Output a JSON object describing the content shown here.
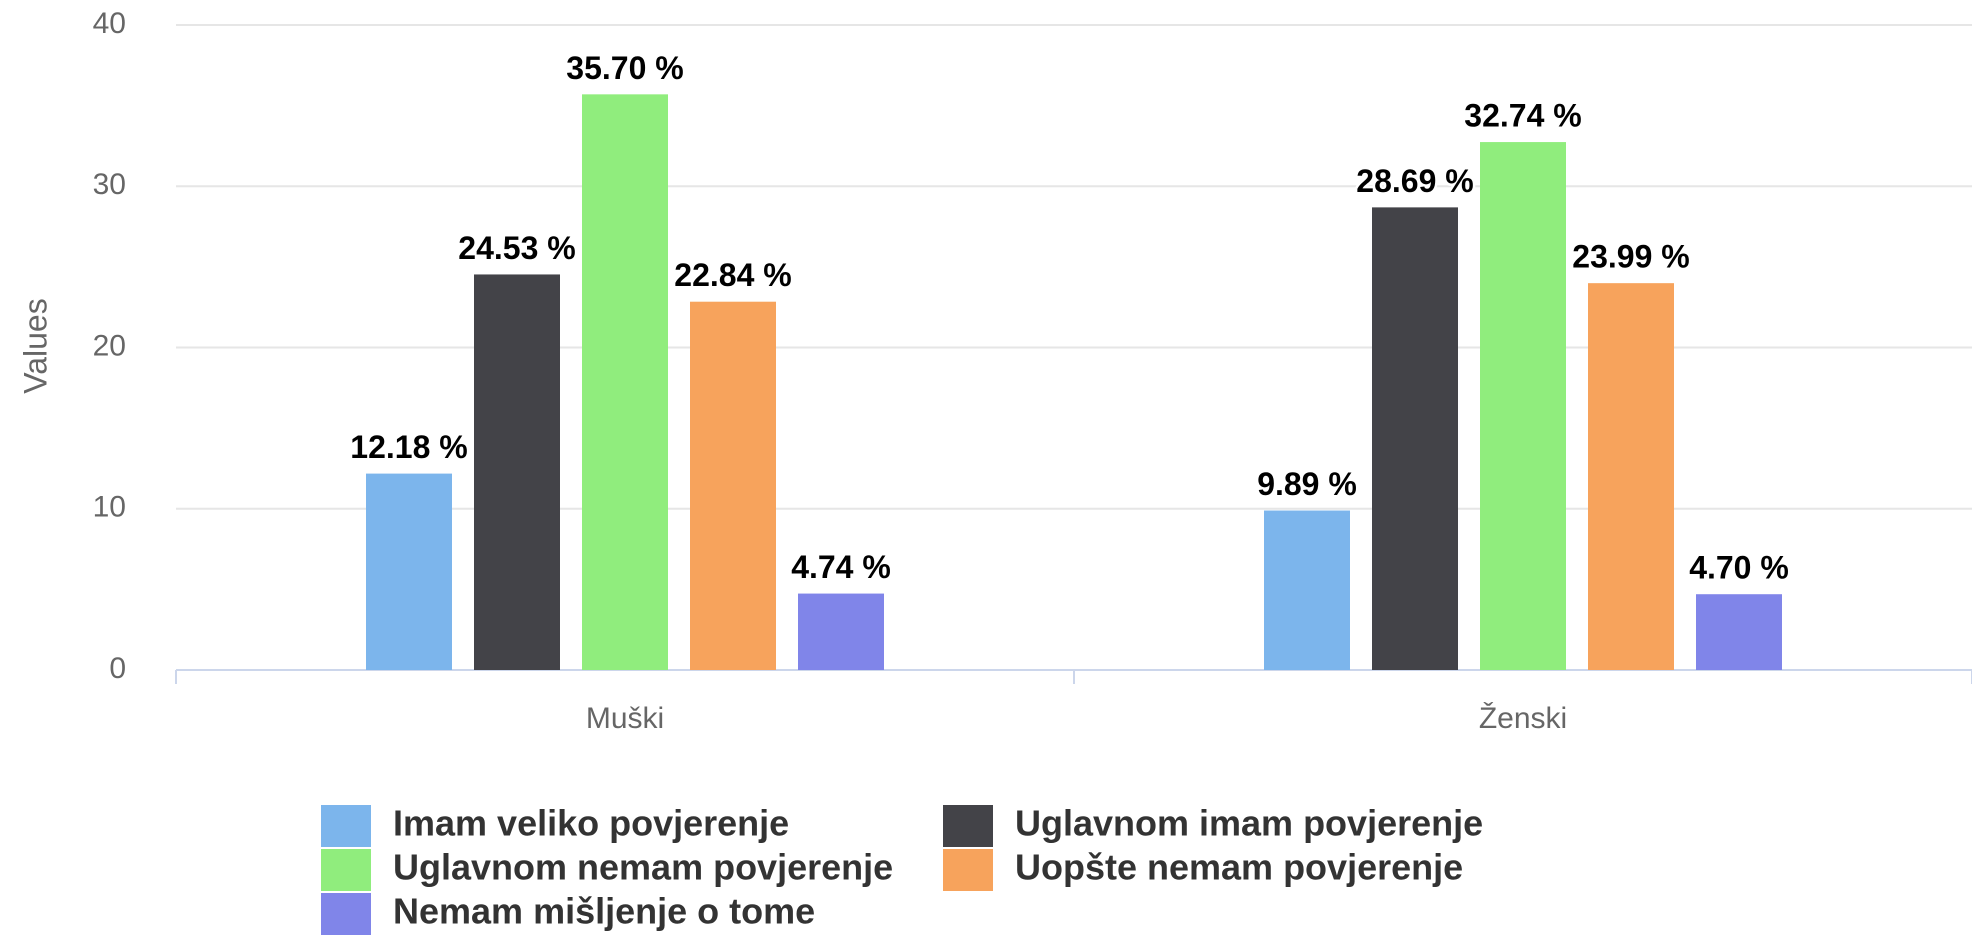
{
  "chart_data": {
    "type": "bar",
    "y_label": "Values",
    "categories": [
      "Muški",
      "Ženski"
    ],
    "series": [
      {
        "name": "Imam veliko povjerenje",
        "color": "#7cb5ec",
        "values": [
          12.18,
          9.89
        ],
        "value_labels": [
          "12.18 %",
          "9.89 %"
        ]
      },
      {
        "name": "Uglavnom imam povjerenje",
        "color": "#434348",
        "values": [
          24.53,
          28.69
        ],
        "value_labels": [
          "24.53 %",
          "28.69 %"
        ]
      },
      {
        "name": "Uglavnom nemam povjerenje",
        "color": "#90ed7d",
        "values": [
          35.7,
          32.74
        ],
        "value_labels": [
          "35.70 %",
          "32.74 %"
        ]
      },
      {
        "name": "Uopšte nemam povjerenje",
        "color": "#f7a35c",
        "values": [
          22.84,
          23.99
        ],
        "value_labels": [
          "22.84 %",
          "23.99 %"
        ]
      },
      {
        "name": "Nemam mišljenje o tome",
        "color": "#8085e9",
        "values": [
          4.74,
          4.7
        ],
        "value_labels": [
          "4.74 %",
          "4.70 %"
        ]
      }
    ],
    "ylim": [
      0,
      40
    ],
    "yticks": [
      0,
      10,
      20,
      30,
      40
    ],
    "grid": true,
    "legend": "bottom"
  }
}
